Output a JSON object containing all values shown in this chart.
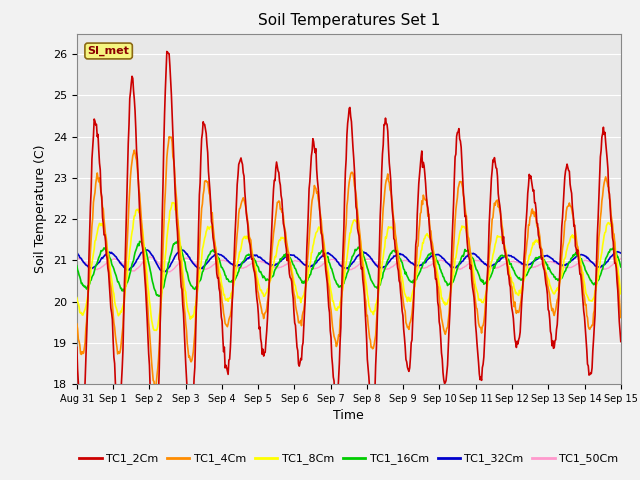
{
  "title": "Soil Temperatures Set 1",
  "xlabel": "Time",
  "ylabel": "Soil Temperature (C)",
  "ylim": [
    18.0,
    26.5
  ],
  "yticks": [
    18.0,
    19.0,
    20.0,
    21.0,
    22.0,
    23.0,
    24.0,
    25.0,
    26.0
  ],
  "plot_bg": "#e8e8e8",
  "fig_bg": "#f2f2f2",
  "series_colors": {
    "TC1_2Cm": "#cc0000",
    "TC1_4Cm": "#ff8c00",
    "TC1_8Cm": "#ffff00",
    "TC1_16Cm": "#00cc00",
    "TC1_32Cm": "#0000cc",
    "TC1_50Cm": "#ff99cc"
  },
  "annotation": "SI_met",
  "xtick_labels": [
    "Aug 31",
    "Sep 1",
    "Sep 2",
    "Sep 3",
    "Sep 4",
    "Sep 5",
    "Sep 6",
    "Sep 7",
    "Sep 8",
    "Sep 9",
    "Sep 10",
    "Sep 11",
    "Sep 12",
    "Sep 13",
    "Sep 14",
    "Sep 15"
  ]
}
